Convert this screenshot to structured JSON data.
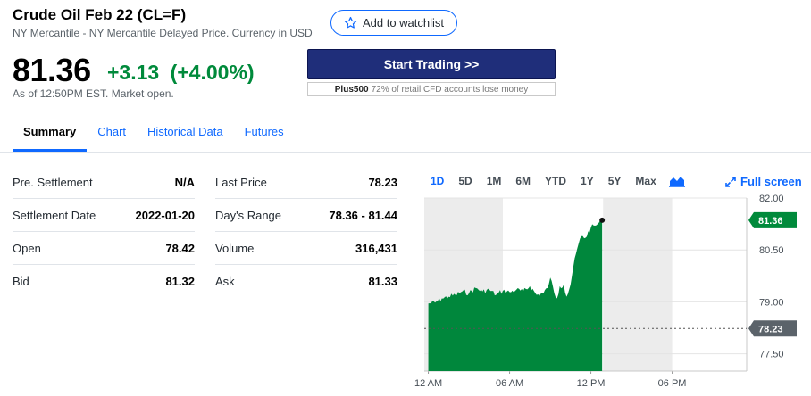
{
  "header": {
    "title": "Crude Oil Feb 22 (CL=F)",
    "subtitle": "NY Mercantile - NY Mercantile Delayed Price. Currency in USD",
    "watchlist_label": "Add to watchlist"
  },
  "quote": {
    "price": "81.36",
    "change": "+3.13",
    "change_pct": "(+4.00%)",
    "as_of": "As of 12:50PM EST. Market open."
  },
  "ad": {
    "button_label": "Start Trading >>",
    "brand": "Plus500",
    "disclaimer": "72% of retail CFD accounts lose money"
  },
  "tabs": [
    {
      "label": "Summary",
      "active": true
    },
    {
      "label": "Chart"
    },
    {
      "label": "Historical Data"
    },
    {
      "label": "Futures"
    }
  ],
  "summary": {
    "left": [
      {
        "label": "Pre. Settlement",
        "value": "N/A"
      },
      {
        "label": "Settlement Date",
        "value": "2022-01-20"
      },
      {
        "label": "Open",
        "value": "78.42"
      },
      {
        "label": "Bid",
        "value": "81.32"
      }
    ],
    "right": [
      {
        "label": "Last Price",
        "value": "78.23"
      },
      {
        "label": "Day's Range",
        "value": "78.36 - 81.44"
      },
      {
        "label": "Volume",
        "value": "316,431"
      },
      {
        "label": "Ask",
        "value": "81.33"
      }
    ]
  },
  "chart_controls": {
    "ranges": [
      "1D",
      "5D",
      "1M",
      "6M",
      "YTD",
      "1Y",
      "5Y",
      "Max"
    ],
    "active_range": "1D",
    "chart_type_icon": "mountain-chart-icon",
    "fullscreen_label": "Full screen"
  },
  "colors": {
    "accent": "#0f69ff",
    "positive": "#008a3b",
    "area": "#00873c",
    "prev_close_marker": "#5b636a"
  },
  "chart_data": {
    "type": "area",
    "ylim": [
      77.0,
      82.0
    ],
    "yticks": [
      "82.00",
      "80.50",
      "79.00",
      "77.50"
    ],
    "ytick_values": [
      82.0,
      80.5,
      79.0,
      77.5
    ],
    "xtick_labels": [
      "12 AM",
      "06 AM",
      "12 PM",
      "06 PM"
    ],
    "xtick_hours": [
      0,
      6,
      12,
      18
    ],
    "x_range_hours": [
      -0.3,
      23.5
    ],
    "current_label": "81.36",
    "current_value": 81.36,
    "prev_close_label": "78.23",
    "prev_close_value": 78.23,
    "shaded_hours": [
      [
        -0.3,
        5.5
      ],
      [
        12.9,
        18.0
      ]
    ],
    "x": [
      0.0,
      0.5,
      1.0,
      1.5,
      2.0,
      2.5,
      3.0,
      3.5,
      4.0,
      4.5,
      5.0,
      5.5,
      6.0,
      6.5,
      7.0,
      7.5,
      8.0,
      8.5,
      8.8,
      9.0,
      9.3,
      9.5,
      9.7,
      10.0,
      10.2,
      10.5,
      10.7,
      11.0,
      11.3,
      11.6,
      12.0,
      12.3,
      12.5,
      12.83
    ],
    "values": [
      78.95,
      78.98,
      79.1,
      79.15,
      79.2,
      79.3,
      79.25,
      79.4,
      79.3,
      79.35,
      79.2,
      79.32,
      79.28,
      79.35,
      79.3,
      79.45,
      79.2,
      79.25,
      79.4,
      79.7,
      79.25,
      79.1,
      79.45,
      79.5,
      79.15,
      79.5,
      80.0,
      80.55,
      80.9,
      80.85,
      81.15,
      81.2,
      81.25,
      81.36
    ]
  }
}
